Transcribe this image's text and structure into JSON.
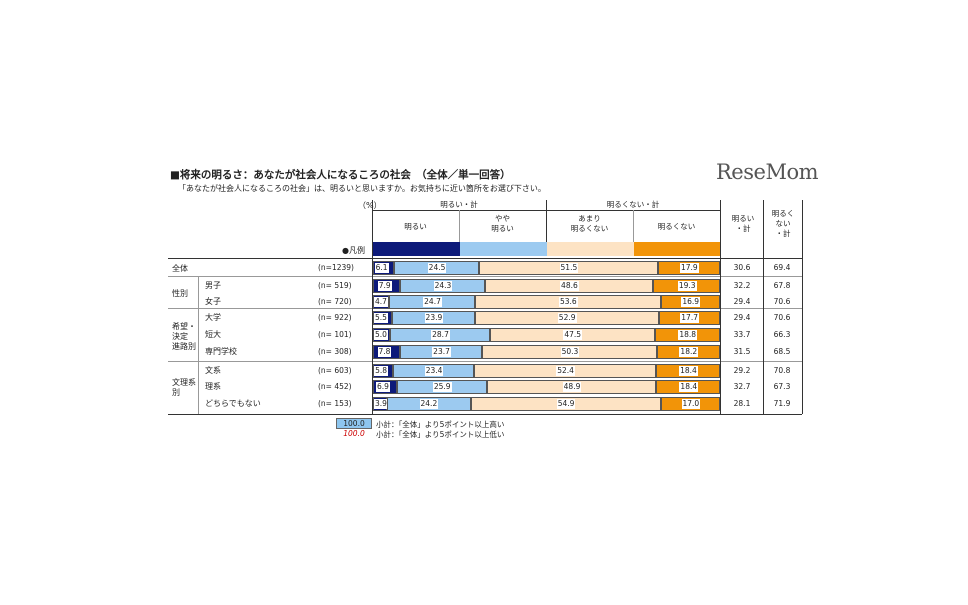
{
  "title": "■将来の明るさ：あなたが社会人になるころの社会　（全体／単一回答）",
  "question": "「あなたが社会人になるころの社会」は、明るいと思いますか。お気持ちに近い箇所をお選び下さい。",
  "logo": "ReseMom",
  "unit_label": "（%）",
  "legend_label": "●凡例",
  "headers": {
    "group_bright": "明るい・計",
    "group_dark": "明るくない・計",
    "cat1": "明るい",
    "cat2": "やや\n明るい",
    "cat3": "あまり\n明るくない",
    "cat4": "明るくない",
    "sum_bright": "明るい\n・計",
    "sum_dark": "明るく\nない\n・計"
  },
  "groups": [
    {
      "label": "全体"
    },
    {
      "label": "性別"
    },
    {
      "label": "希望・\n決定\n進路別"
    },
    {
      "label": "文理系\n別"
    }
  ],
  "footnote": {
    "high_value": "100.0",
    "high_text": "小計：「全体」より5ポイント以上高い",
    "low_value": "100.0",
    "low_text": "小計：「全体」より5ポイント以上低い"
  },
  "colors": {
    "bright": "#0d1a7a",
    "somewhat_bright": "#9ccaf0",
    "not_very_bright": "#fde3c4",
    "not_bright": "#f29408",
    "highlight": "#8ec6ef",
    "low_text": "#cc0000"
  },
  "chart_data": {
    "type": "bar",
    "stacked": true,
    "orientation": "horizontal",
    "unit": "%",
    "categories": [
      "全体",
      "男子",
      "女子",
      "大学",
      "短大",
      "専門学校",
      "文系",
      "理系",
      "どちらでもない"
    ],
    "n_labels": [
      "(n=1239)",
      "(n=  519)",
      "(n=  720)",
      "(n=  922)",
      "(n=  101)",
      "(n=  308)",
      "(n=  603)",
      "(n=  452)",
      "(n=  153)"
    ],
    "series": [
      {
        "name": "明るい",
        "values": [
          6.1,
          7.9,
          4.7,
          5.5,
          5.0,
          7.8,
          5.8,
          6.9,
          3.9
        ]
      },
      {
        "name": "やや明るい",
        "values": [
          24.5,
          24.3,
          24.7,
          23.9,
          28.7,
          23.7,
          23.4,
          25.9,
          24.2
        ]
      },
      {
        "name": "あまり明るくない",
        "values": [
          51.5,
          48.6,
          53.6,
          52.9,
          47.5,
          50.3,
          52.4,
          48.9,
          54.9
        ]
      },
      {
        "name": "明るくない",
        "values": [
          17.9,
          19.3,
          16.9,
          17.7,
          18.8,
          18.2,
          18.4,
          18.4,
          17.0
        ]
      }
    ],
    "subtotals": {
      "bright_total": [
        "30.6",
        "32.2",
        "29.4",
        "29.4",
        "33.7",
        "31.5",
        "29.2",
        "32.7",
        "28.1"
      ],
      "dark_total": [
        "69.4",
        "67.8",
        "70.6",
        "70.6",
        "66.3",
        "68.5",
        "70.8",
        "67.3",
        "71.9"
      ]
    },
    "xlim": [
      0,
      100
    ]
  }
}
